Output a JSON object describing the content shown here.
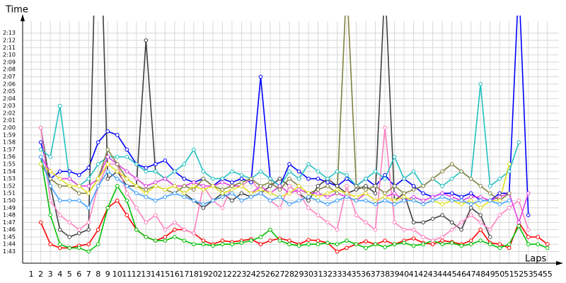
{
  "chart_data": {
    "type": "line",
    "y_label": "Time",
    "x_label": "Laps",
    "x": [
      1,
      2,
      3,
      4,
      5,
      6,
      7,
      8,
      9,
      10,
      11,
      12,
      13,
      14,
      15,
      16,
      17,
      18,
      19,
      20,
      21,
      22,
      23,
      24,
      25,
      26,
      27,
      28,
      29,
      30,
      31,
      32,
      33,
      34,
      35,
      36,
      37,
      38,
      39,
      40,
      41,
      42,
      43,
      44,
      45,
      46,
      47,
      48,
      49,
      50,
      51,
      52,
      53,
      54,
      55
    ],
    "xlim": [
      0.1,
      56.2
    ],
    "xticks": [
      1,
      2,
      3,
      4,
      5,
      6,
      7,
      8,
      9,
      10,
      11,
      12,
      13,
      14,
      15,
      16,
      17,
      18,
      19,
      20,
      21,
      22,
      23,
      24,
      25,
      26,
      27,
      28,
      29,
      30,
      31,
      32,
      33,
      34,
      35,
      36,
      37,
      38,
      39,
      40,
      41,
      42,
      43,
      44,
      45,
      46,
      47,
      48,
      49,
      50,
      51,
      52,
      53,
      54,
      55
    ],
    "ylim": [
      101.4,
      135.4
    ],
    "yticks": [
      {
        "value": 103,
        "label": "1:43"
      },
      {
        "value": 104,
        "label": "1:44"
      },
      {
        "value": 105,
        "label": "1:45"
      },
      {
        "value": 106,
        "label": "1:46"
      },
      {
        "value": 107,
        "label": "1:47"
      },
      {
        "value": 108,
        "label": "1:48"
      },
      {
        "value": 109,
        "label": "1:49"
      },
      {
        "value": 110,
        "label": "1:50"
      },
      {
        "value": 111,
        "label": "1:51"
      },
      {
        "value": 112,
        "label": "1:52"
      },
      {
        "value": 113,
        "label": "1:53"
      },
      {
        "value": 114,
        "label": "1:54"
      },
      {
        "value": 115,
        "label": "1:55"
      },
      {
        "value": 116,
        "label": "1:56"
      },
      {
        "value": 117,
        "label": "1:57"
      },
      {
        "value": 118,
        "label": "1:58"
      },
      {
        "value": 119,
        "label": "1:59"
      },
      {
        "value": 120,
        "label": "2:00"
      },
      {
        "value": 121,
        "label": "2:01"
      },
      {
        "value": 122,
        "label": "2:02"
      },
      {
        "value": 123,
        "label": "2:03"
      },
      {
        "value": 124,
        "label": "2:04"
      },
      {
        "value": 125,
        "label": "2:05"
      },
      {
        "value": 126,
        "label": "2:06"
      },
      {
        "value": 127,
        "label": "2:07"
      },
      {
        "value": 128,
        "label": "2:08"
      },
      {
        "value": 129,
        "label": "2:09"
      },
      {
        "value": 130,
        "label": "2:10"
      },
      {
        "value": 131,
        "label": "2:11"
      },
      {
        "value": 132,
        "label": "2:12"
      },
      {
        "value": 133,
        "label": "2:13"
      }
    ],
    "grid": true,
    "series": [
      {
        "color": "#ff0000",
        "values": [
          null,
          107,
          104,
          103.5,
          103.5,
          103.8,
          104,
          106,
          109,
          110,
          108,
          106,
          105,
          104.5,
          105,
          106,
          106,
          105.5,
          104.5,
          104,
          104.5,
          104.3,
          104.5,
          104.7,
          104,
          104.5,
          104.8,
          104.5,
          104,
          104.6,
          104.5,
          104.2,
          103,
          103.5,
          104,
          104.4,
          104,
          104.5,
          104,
          104.5,
          104.8,
          104.2,
          104,
          104.5,
          104.3,
          104,
          104.5,
          106,
          104.2,
          104,
          103.5,
          107,
          105,
          105,
          104
        ]
      },
      {
        "color": "#0000ff",
        "values": [
          null,
          118,
          113,
          114,
          114,
          113.5,
          114.5,
          118,
          119.5,
          119,
          117,
          115,
          114.5,
          115,
          115.5,
          114,
          113,
          112.5,
          113,
          112,
          113,
          112.5,
          113,
          112.5,
          127,
          113,
          112,
          115,
          114,
          113,
          113,
          112.5,
          112,
          113,
          112,
          113,
          112,
          113.5,
          112,
          113,
          112,
          111,
          110.5,
          111,
          111,
          110.5,
          111,
          110,
          110,
          111,
          111,
          140,
          108,
          null,
          null
        ]
      },
      {
        "color": "#00c000",
        "values": [
          null,
          116,
          108,
          104,
          103.5,
          103.5,
          103,
          104,
          109,
          112,
          110,
          106,
          105,
          104.5,
          104.5,
          105,
          104.5,
          104,
          104,
          103.8,
          104,
          104,
          104.2,
          104.5,
          105,
          106,
          104.5,
          104,
          103.8,
          104,
          104,
          104.2,
          104,
          104.5,
          104,
          103.5,
          104,
          103.6,
          104,
          104.2,
          103.8,
          104,
          104.5,
          104,
          104.2,
          103.8,
          104,
          104.5,
          104,
          103.5,
          104,
          106.5,
          104,
          104,
          103.5
        ]
      },
      {
        "color": "#404040",
        "values": [
          null,
          120,
          112,
          106,
          105,
          105.5,
          106,
          160,
          113,
          114,
          112,
          112,
          132,
          114,
          113,
          112,
          111,
          110,
          109,
          110,
          111,
          110,
          111,
          110.5,
          111,
          112,
          113,
          112,
          111,
          110,
          112,
          113,
          112,
          111,
          111.5,
          112,
          111,
          140,
          110,
          111,
          107,
          107,
          107.5,
          108,
          107,
          106,
          109,
          108,
          105,
          null,
          null,
          null,
          null,
          null,
          null
        ]
      },
      {
        "color": "#ff80c0",
        "values": [
          null,
          120,
          110,
          108,
          107,
          106,
          107,
          112,
          115,
          115,
          111,
          109,
          107,
          108,
          106,
          107,
          106,
          105.5,
          112,
          110,
          109,
          112,
          112,
          113,
          111,
          110,
          109,
          112,
          111,
          109,
          108,
          107,
          106,
          112,
          108,
          107,
          106,
          120,
          107,
          106,
          106,
          105,
          104.5,
          105,
          106,
          107,
          108,
          107,
          106,
          108,
          109,
          110,
          106,
          null,
          null
        ]
      },
      {
        "color": "#20c0c0",
        "values": [
          null,
          117,
          116,
          123,
          113,
          112,
          113,
          115,
          116,
          116,
          116,
          115,
          114,
          114,
          113,
          114,
          115,
          117,
          114,
          113,
          113,
          114,
          113.5,
          113,
          114,
          113,
          112,
          114,
          113,
          115,
          114,
          113,
          114,
          113.5,
          112,
          113,
          114,
          113,
          116,
          113,
          114,
          112,
          113,
          112,
          113,
          114,
          113,
          126,
          112,
          113,
          114,
          118,
          null,
          null,
          null
        ]
      },
      {
        "color": "#e040e0",
        "values": [
          null,
          116,
          114,
          113,
          113,
          112,
          112,
          113,
          116,
          115,
          114,
          113,
          112,
          112.5,
          113,
          112,
          112,
          112.5,
          112,
          112,
          112.5,
          112,
          112,
          111,
          112,
          111,
          112,
          111,
          111.5,
          111,
          111,
          110.5,
          111,
          110.5,
          110,
          111,
          110,
          110.5,
          111,
          110,
          110.5,
          110,
          110.5,
          111,
          110.5,
          110,
          110.5,
          110.5,
          110,
          110.5,
          111,
          107,
          111,
          null,
          null
        ]
      },
      {
        "color": "#808040",
        "values": [
          null,
          115,
          113,
          112,
          112,
          111,
          111,
          113,
          117,
          115,
          113,
          112,
          111.5,
          112,
          111.5,
          111,
          112,
          111.5,
          113,
          112,
          111.5,
          112,
          112.5,
          113,
          112,
          112.5,
          111.5,
          113,
          112,
          111,
          111.5,
          112,
          111,
          140,
          112,
          111.5,
          112,
          111,
          112,
          111,
          111.5,
          112,
          113,
          114,
          115,
          114,
          113,
          112,
          111,
          110,
          111,
          null,
          null,
          null,
          null
        ]
      },
      {
        "color": "#e0e020",
        "values": [
          null,
          115,
          114,
          113,
          112,
          112,
          111,
          113,
          115,
          114,
          113,
          112,
          111,
          112,
          111.5,
          112,
          111,
          112,
          111.5,
          112,
          111,
          111.5,
          112,
          111,
          111.5,
          111,
          110.5,
          111,
          112,
          111,
          110.5,
          111,
          111.5,
          111,
          110.5,
          111,
          110,
          110.5,
          110,
          110.5,
          110,
          109.5,
          110,
          109.5,
          110,
          109.5,
          110,
          109,
          110,
          110,
          115,
          null,
          null,
          null,
          null
        ]
      },
      {
        "color": "#40a0ff",
        "values": [
          null,
          116,
          112,
          110,
          110,
          110,
          109,
          112,
          114,
          113,
          112,
          111,
          110.5,
          110,
          110.5,
          111,
          110.5,
          110,
          109.5,
          110,
          110.5,
          111,
          110,
          110.5,
          111,
          110,
          110.5,
          109.5,
          110,
          110.5,
          110,
          109.5,
          110,
          110.5,
          110,
          110,
          109.5,
          110,
          109.5,
          110,
          110,
          109.5,
          110,
          110.5,
          110,
          110,
          109.5,
          110,
          110,
          109.5,
          110,
          null,
          null,
          null,
          null
        ]
      }
    ]
  }
}
